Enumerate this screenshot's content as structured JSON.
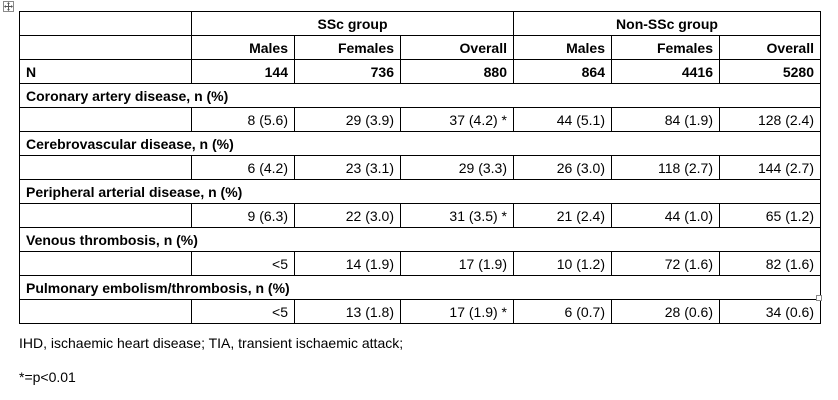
{
  "table": {
    "group_headers": [
      "SSc group",
      "Non-SSc group"
    ],
    "sub_headers": [
      "Males",
      "Females",
      "Overall",
      "Males",
      "Females",
      "Overall"
    ],
    "n_row": {
      "label": "N",
      "values": [
        "144",
        "736",
        "880",
        "864",
        "4416",
        "5280"
      ]
    },
    "sections": [
      {
        "label": "Coronary artery disease, n (%)",
        "values": [
          "8 (5.6)",
          "29 (3.9)",
          "37 (4.2) *",
          "44 (5.1)",
          "84 (1.9)",
          "128 (2.4)"
        ]
      },
      {
        "label": "Cerebrovascular disease, n (%)",
        "values": [
          "6 (4.2)",
          "23 (3.1)",
          "29 (3.3)",
          "26 (3.0)",
          "118 (2.7)",
          "144 (2.7)"
        ]
      },
      {
        "label": "Peripheral arterial disease, n (%)",
        "values": [
          "9 (6.3)",
          "22 (3.0)",
          "31 (3.5) *",
          "21 (2.4)",
          "44 (1.0)",
          "65 (1.2)"
        ]
      },
      {
        "label": "Venous thrombosis, n (%)",
        "values": [
          "<5",
          "14 (1.9)",
          "17 (1.9)",
          "10 (1.2)",
          "72 (1.6)",
          "82 (1.6)"
        ]
      },
      {
        "label": "Pulmonary embolism/thrombosis, n (%)",
        "values": [
          "<5",
          "13 (1.8)",
          "17 (1.9) *",
          "6 (0.7)",
          "28 (0.6)",
          "34 (0.6)"
        ]
      }
    ]
  },
  "footnotes": {
    "abbreviations": "IHD, ischaemic heart disease; TIA, transient ischaemic attack;",
    "significance": "*=p<0.01"
  }
}
